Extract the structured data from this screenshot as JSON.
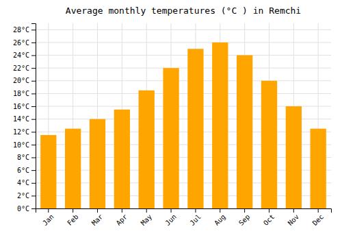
{
  "chart_data": {
    "type": "bar",
    "title": "Average monthly temperatures (°C ) in Remchi",
    "categories": [
      "Jan",
      "Feb",
      "Mar",
      "Apr",
      "May",
      "Jun",
      "Jul",
      "Aug",
      "Sep",
      "Oct",
      "Nov",
      "Dec"
    ],
    "values": [
      11.5,
      12.5,
      14.0,
      15.5,
      18.5,
      22.0,
      25.0,
      26.0,
      24.0,
      20.0,
      16.0,
      12.5
    ],
    "color": "#FFA500",
    "ylim": [
      0,
      29
    ],
    "yticks": [
      {
        "value": 0,
        "label": "0°C"
      },
      {
        "value": 2,
        "label": "2°C"
      },
      {
        "value": 4,
        "label": "4°C"
      },
      {
        "value": 6,
        "label": "6°C"
      },
      {
        "value": 8,
        "label": "8°C"
      },
      {
        "value": 10,
        "label": "10°C"
      },
      {
        "value": 12,
        "label": "12°C"
      },
      {
        "value": 14,
        "label": "14°C"
      },
      {
        "value": 16,
        "label": "16°C"
      },
      {
        "value": 18,
        "label": "18°C"
      },
      {
        "value": 20,
        "label": "20°C"
      },
      {
        "value": 22,
        "label": "22°C"
      },
      {
        "value": 24,
        "label": "24°C"
      },
      {
        "value": 26,
        "label": "26°C"
      },
      {
        "value": 28,
        "label": "28°C"
      }
    ],
    "grid": true
  }
}
